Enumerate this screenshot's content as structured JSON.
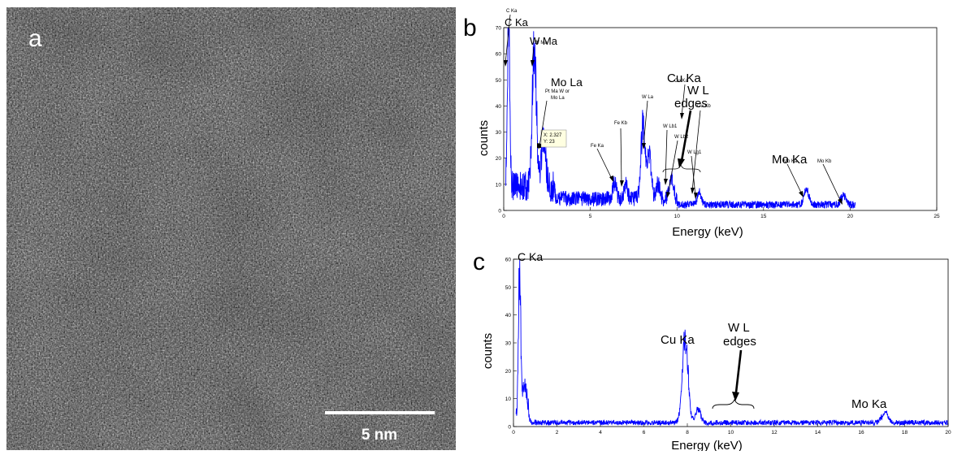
{
  "panel_a": {
    "label": "a",
    "scale_bar_label": "5 nm"
  },
  "chart_data": [
    {
      "panel": "b",
      "type": "line",
      "xlabel": "Energy (keV)",
      "ylabel": "counts",
      "xlim": [
        0,
        25
      ],
      "ylim": [
        0,
        70
      ],
      "xticks": [
        0,
        5,
        10,
        15,
        20,
        25
      ],
      "yticks": [
        0,
        10,
        20,
        30,
        40,
        50,
        60,
        70
      ],
      "line_color": "#0000ff",
      "grid": false,
      "peaks": [
        {
          "x": 0.28,
          "y": 67,
          "w": 0.07
        },
        {
          "x": 1.77,
          "y": 57,
          "w": 0.12
        },
        {
          "x": 2.3,
          "y": 21,
          "w": 0.12
        },
        {
          "x": 6.4,
          "y": 7,
          "w": 0.1
        },
        {
          "x": 7.06,
          "y": 6,
          "w": 0.1
        },
        {
          "x": 8.04,
          "y": 31,
          "w": 0.12
        },
        {
          "x": 8.4,
          "y": 19,
          "w": 0.12
        },
        {
          "x": 8.9,
          "y": 6,
          "w": 0.1
        },
        {
          "x": 9.67,
          "y": 9,
          "w": 0.12
        },
        {
          "x": 11.29,
          "y": 5,
          "w": 0.12
        },
        {
          "x": 17.48,
          "y": 6,
          "w": 0.14
        },
        {
          "x": 19.6,
          "y": 4,
          "w": 0.14
        }
      ],
      "annotations": {
        "big": [
          "C Ka",
          "W Ma",
          "Mo La",
          "Cu Ka",
          "W L",
          "edges",
          "Mo Ka"
        ],
        "small": [
          "C Ka",
          "W Ma",
          "Pt Ma W or",
          "Mo La",
          "Fe Kb",
          "Fe Ka",
          "Cu Ka",
          "Cu Kb",
          "W La",
          "W Lb1",
          "W Lb2",
          "W Lg1",
          "Mo Ka",
          "Mo Kb"
        ],
        "datatip": [
          "X: 2.327",
          "Y: 23"
        ]
      }
    },
    {
      "panel": "c",
      "type": "line",
      "xlabel": "Energy (keV)",
      "ylabel": "counts",
      "xlim": [
        0,
        20
      ],
      "ylim": [
        0,
        60
      ],
      "xticks": [
        0,
        2,
        4,
        6,
        8,
        10,
        12,
        14,
        16,
        18,
        20
      ],
      "yticks": [
        0,
        10,
        20,
        30,
        40,
        50,
        60
      ],
      "line_color": "#0000ff",
      "grid": false,
      "peaks": [
        {
          "x": 0.28,
          "y": 57,
          "w": 0.05
        },
        {
          "x": 0.5,
          "y": 12,
          "w": 0.12
        },
        {
          "x": 7.9,
          "y": 34,
          "w": 0.13
        },
        {
          "x": 8.5,
          "y": 5,
          "w": 0.12
        },
        {
          "x": 17.1,
          "y": 4,
          "w": 0.15
        }
      ],
      "annotations": {
        "big": [
          "C Ka",
          "Cu Ka",
          "W L",
          "edges",
          "Mo Ka"
        ]
      }
    }
  ]
}
